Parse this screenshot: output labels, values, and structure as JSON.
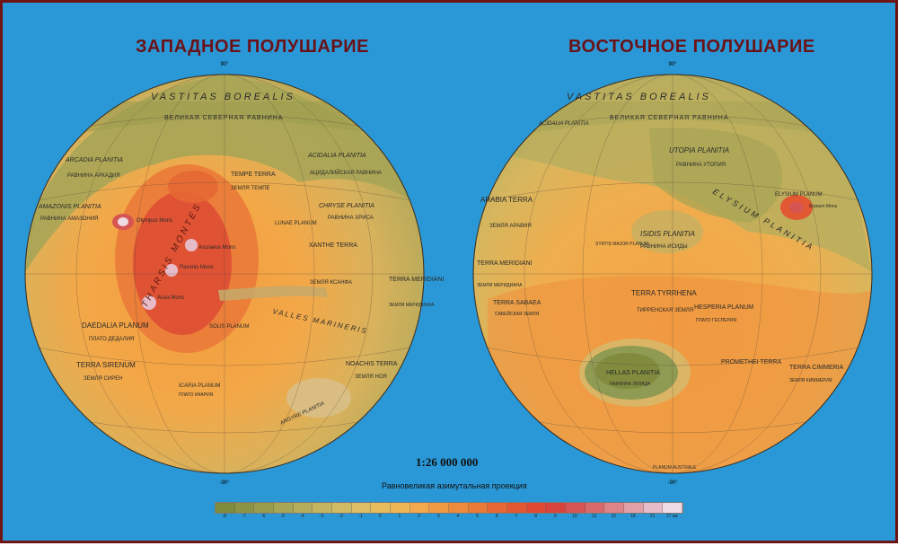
{
  "titles": {
    "west": "ЗАПАДНОЕ ПОЛУШАРИЕ",
    "east": "ВОСТОЧНОЕ ПОЛУШАРИЕ"
  },
  "scale": "1:26 000 000",
  "projection": "Равновеликая азимутальная проекция",
  "colors": {
    "ocean": "#2a98d6",
    "frame": "#6e1414",
    "title": "#6a1218",
    "lowland": "#9a9c52",
    "highland": "#ee8a3a",
    "peak": "#e8b4c8"
  },
  "legend": {
    "colors": [
      "#7e8a3c",
      "#8b9444",
      "#989c4c",
      "#a6a654",
      "#b4ae5c",
      "#c2b460",
      "#d0ba64",
      "#dcbe64",
      "#e6bc5c",
      "#eeb654",
      "#f2a84c",
      "#f09a44",
      "#ee8a3c",
      "#ea7a38",
      "#e66834",
      "#e25832",
      "#de4a34",
      "#d8443c",
      "#d65452",
      "#d86a6c",
      "#dc8488",
      "#e0a0a8",
      "#e6bcc8",
      "#eedae4"
    ],
    "labels": [
      "-8",
      "-7",
      "-6",
      "-5",
      "-4",
      "-3",
      "-2",
      "-1",
      "0",
      "1",
      "2",
      "3",
      "4",
      "5",
      "6",
      "7",
      "8",
      "9",
      "10",
      "12",
      "15",
      "18",
      "21",
      "27 км"
    ]
  },
  "west": {
    "north_label": "90°",
    "south_label": "-90°",
    "features": [
      {
        "text": "VASTITAS BOREALIS",
        "type": "region"
      },
      {
        "text": "ВЕЛИКАЯ СЕВЕРНАЯ РАВНИНА",
        "type": "region-ru"
      },
      {
        "text": "ARCADIA PLANITIA",
        "type": "region"
      },
      {
        "text": "РАВНИНА АРКАДИЯ",
        "type": "region-ru"
      },
      {
        "text": "ACIDALIA PLANITIA",
        "type": "region"
      },
      {
        "text": "АЦИДАЛИЙСКАЯ РАВНИНА",
        "type": "region-ru"
      },
      {
        "text": "TEMPE TERRA",
        "type": "region"
      },
      {
        "text": "ЗЕМЛЯ ТЕМПЕ",
        "type": "region-ru"
      },
      {
        "text": "AMAZONIS PLANITIA",
        "type": "region"
      },
      {
        "text": "РАВНИНА АМАЗОНИЯ",
        "type": "region-ru"
      },
      {
        "text": "CHRYSE PLANITIA",
        "type": "region"
      },
      {
        "text": "РАВНИНА ХРИСА",
        "type": "region-ru"
      },
      {
        "text": "Olympus Mons",
        "type": "peak"
      },
      {
        "text": "THARSIS MONTES",
        "type": "region"
      },
      {
        "text": "Ascraeus Mons",
        "type": "peak"
      },
      {
        "text": "Pavonis Mons",
        "type": "peak"
      },
      {
        "text": "Arsia Mons",
        "type": "peak"
      },
      {
        "text": "LUNAE PLANUM",
        "type": "small"
      },
      {
        "text": "XANTHE TERRA",
        "type": "region"
      },
      {
        "text": "ЗЕМЛЯ КСАНФА",
        "type": "region-ru"
      },
      {
        "text": "TERRA MERIDIANI",
        "type": "region"
      },
      {
        "text": "ЗЕМЛЯ МЕРИДИАНА",
        "type": "region-ru"
      },
      {
        "text": "VALLES MARINERIS",
        "type": "region"
      },
      {
        "text": "DAEDALIA PLANUM",
        "type": "region"
      },
      {
        "text": "ПЛАТО ДЕДАЛИЯ",
        "type": "region-ru"
      },
      {
        "text": "SOLIS PLANUM",
        "type": "small"
      },
      {
        "text": "TERRA SIRENUM",
        "type": "region"
      },
      {
        "text": "ЗЕМЛЯ СИРЕН",
        "type": "region-ru"
      },
      {
        "text": "NOACHIS TERRA",
        "type": "region"
      },
      {
        "text": "ЗЕМЛЯ НОЯ",
        "type": "region-ru"
      },
      {
        "text": "ICARIA PLANUM",
        "type": "small"
      },
      {
        "text": "ПЛАТО ИКАРИЯ",
        "type": "small"
      },
      {
        "text": "ARGYRE PLANITIA",
        "type": "region"
      }
    ]
  },
  "east": {
    "north_label": "90°",
    "south_label": "-90°",
    "features": [
      {
        "text": "VASTITAS BOREALIS",
        "type": "region"
      },
      {
        "text": "ВЕЛИКАЯ СЕВЕРНАЯ РАВНИНА",
        "type": "region-ru"
      },
      {
        "text": "ACIDALIA PLANITIA",
        "type": "region"
      },
      {
        "text": "UTOPIA PLANITIA",
        "type": "region"
      },
      {
        "text": "РАВНИНА УТОПИЯ",
        "type": "region-ru"
      },
      {
        "text": "ELYSIUM PLANITIA",
        "type": "region"
      },
      {
        "text": "ELYSIUM PLANUM",
        "type": "small"
      },
      {
        "text": "Elysium Mons",
        "type": "peak"
      },
      {
        "text": "ARABIA TERRA",
        "type": "region"
      },
      {
        "text": "ЗЕМЛЯ АРАВИЯ",
        "type": "region-ru"
      },
      {
        "text": "ISIDIS PLANITIA",
        "type": "region"
      },
      {
        "text": "РАВНИНА ИСИДЫ",
        "type": "region-ru"
      },
      {
        "text": "SYRTIS MAJOR PLANUM",
        "type": "small"
      },
      {
        "text": "TERRA MERIDIANI",
        "type": "region"
      },
      {
        "text": "ЗЕМЛЯ МЕРИДИАНА",
        "type": "region-ru"
      },
      {
        "text": "TERRA SABAEA",
        "type": "region"
      },
      {
        "text": "САБЕЙСКАЯ ЗЕМЛЯ",
        "type": "region-ru"
      },
      {
        "text": "TERRA TYRRHENA",
        "type": "region"
      },
      {
        "text": "ТИРРЕНСКАЯ ЗЕМЛЯ",
        "type": "region-ru"
      },
      {
        "text": "HESPERIA PLANUM",
        "type": "region"
      },
      {
        "text": "ПЛАТО ГЕСПЕРИЯ",
        "type": "region-ru"
      },
      {
        "text": "HELLAS PLANITIA",
        "type": "region"
      },
      {
        "text": "РАВНИНА ЭЛЛАДА",
        "type": "region-ru"
      },
      {
        "text": "PROMETHEI TERRA",
        "type": "region"
      },
      {
        "text": "TERRA CIMMERIA",
        "type": "region"
      },
      {
        "text": "ЗЕМЛЯ КИММЕРИЯ",
        "type": "region-ru"
      },
      {
        "text": "PLANUM AUSTRALE",
        "type": "small"
      }
    ]
  }
}
